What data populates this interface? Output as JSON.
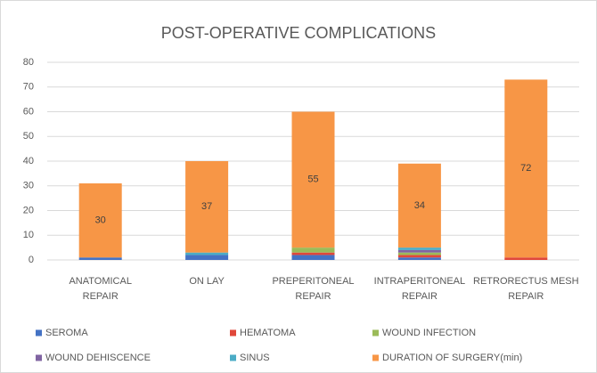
{
  "chart_data": {
    "type": "stacked_bar",
    "title": "POST-OPERATIVE COMPLICATIONS",
    "categories": [
      [
        "ANATOMICAL",
        "REPAIR"
      ],
      [
        "ON LAY"
      ],
      [
        "PREPERITONEAL",
        "REPAIR"
      ],
      [
        "INTRAPERITONEAL",
        "REPAIR"
      ],
      [
        "RETRORECTUS MESH",
        "REPAIR"
      ]
    ],
    "series": [
      {
        "name": "SEROMA",
        "color": "#4472c4",
        "values": [
          1,
          2,
          2,
          1,
          0
        ]
      },
      {
        "name": "HEMATOMA",
        "color": "#e0473a",
        "values": [
          0,
          0,
          1,
          1,
          1
        ]
      },
      {
        "name": "WOUND INFECTION",
        "color": "#9bbb59",
        "values": [
          0,
          0,
          2,
          1,
          0
        ]
      },
      {
        "name": "WOUND DEHISCENCE",
        "color": "#8064a2",
        "values": [
          0,
          0,
          0,
          1,
          0
        ]
      },
      {
        "name": "SINUS",
        "color": "#4bacc6",
        "values": [
          0,
          1,
          0,
          1,
          0
        ]
      },
      {
        "name": "DURATION OF SURGERY(min)",
        "color": "#f79646",
        "values": [
          30,
          37,
          55,
          34,
          72
        ],
        "data_labels": true
      }
    ],
    "ylim": [
      0,
      80
    ],
    "yticks": [
      0,
      10,
      20,
      30,
      40,
      50,
      60,
      70,
      80
    ],
    "grid": true
  }
}
